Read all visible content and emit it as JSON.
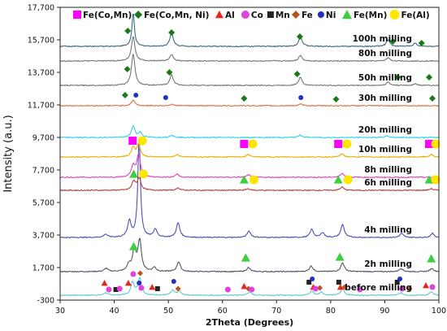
{
  "chart_data": {
    "type": "line",
    "xlabel": "2Theta (Degrees)",
    "ylabel": "Intensity (a.u.)",
    "xlim": [
      30,
      100
    ],
    "ylim": [
      -300,
      17700
    ],
    "x_ticks": [
      30,
      40,
      50,
      60,
      70,
      80,
      90,
      100
    ],
    "y_ticks": [
      "-300",
      "1,700",
      "3,700",
      "5,700",
      "7,700",
      "9,700",
      "11,700",
      "13,700",
      "15,700",
      "17,700"
    ],
    "y_tick_values": [
      -300,
      1700,
      3700,
      5700,
      7700,
      9700,
      11700,
      13700,
      15700,
      17700
    ],
    "grid": false,
    "legend_position": "top",
    "legend": [
      {
        "symbol": "square",
        "color": "#ff00ff",
        "label": "Fe(Co,Mn)"
      },
      {
        "symbol": "diamond",
        "color": "#1a7a1a",
        "label": "Fe(Co,Mn, Ni)"
      },
      {
        "symbol": "triangle",
        "color": "#e8261a",
        "label": "Al"
      },
      {
        "symbol": "circle",
        "color": "#e040e0",
        "label": "Co"
      },
      {
        "symbol": "square",
        "color": "#222222",
        "label": "Mn"
      },
      {
        "symbol": "diamond",
        "color": "#b5551d",
        "label": "Fe"
      },
      {
        "symbol": "circle",
        "color": "#2030c0",
        "label": "Ni"
      },
      {
        "symbol": "triangle",
        "color": "#3ecf3e",
        "label": "Fe(Mn)"
      },
      {
        "symbol": "circle",
        "color": "#ffe500",
        "label": "Fe(Al)"
      }
    ],
    "series": [
      {
        "name": "before milling",
        "color": "#5fc8c8",
        "baseline": 0,
        "peaks": [
          [
            38.4,
            150
          ],
          [
            43.4,
            800
          ],
          [
            44.7,
            1050
          ],
          [
            50.8,
            300
          ],
          [
            52.0,
            250
          ],
          [
            65.0,
            200
          ],
          [
            76.5,
            250
          ],
          [
            78.3,
            200
          ],
          [
            82.2,
            400
          ],
          [
            93.0,
            150
          ],
          [
            98.6,
            200
          ]
        ]
      },
      {
        "name": "2h milling",
        "color": "#555566",
        "baseline": 1450,
        "peaks": [
          [
            38.5,
            200
          ],
          [
            42.7,
            400
          ],
          [
            43.7,
            1300
          ],
          [
            44.7,
            1900
          ],
          [
            47.4,
            250
          ],
          [
            51.9,
            600
          ],
          [
            64.8,
            250
          ],
          [
            76.4,
            350
          ],
          [
            82.2,
            550
          ],
          [
            93.0,
            200
          ],
          [
            98.7,
            200
          ]
        ]
      },
      {
        "name": "4h milling",
        "color": "#5050b8",
        "baseline": 3550,
        "peaks": [
          [
            38.4,
            200
          ],
          [
            42.8,
            1000
          ],
          [
            44.6,
            6200
          ],
          [
            47.6,
            500
          ],
          [
            51.8,
            900
          ],
          [
            64.9,
            400
          ],
          [
            76.5,
            500
          ],
          [
            78.5,
            300
          ],
          [
            82.2,
            800
          ],
          [
            93.1,
            250
          ],
          [
            98.8,
            250
          ]
        ]
      },
      {
        "name": "6h milling",
        "color": "#b84040",
        "baseline": 6450,
        "peaks": [
          [
            43.6,
            550
          ],
          [
            44.6,
            750
          ],
          [
            51.8,
            150
          ],
          [
            64.7,
            100
          ],
          [
            82.1,
            200
          ],
          [
            98.6,
            100
          ]
        ]
      },
      {
        "name": "8h milling",
        "color": "#e040c8",
        "baseline": 7250,
        "peaks": [
          [
            43.5,
            700
          ],
          [
            44.5,
            1400
          ],
          [
            51.6,
            200
          ],
          [
            64.8,
            150
          ],
          [
            82.1,
            250
          ]
        ]
      },
      {
        "name": "10h milling",
        "color": "#e8b000",
        "baseline": 8500,
        "peaks": [
          [
            43.5,
            600
          ],
          [
            44.5,
            750
          ],
          [
            51.6,
            150
          ],
          [
            64.8,
            150
          ],
          [
            82.1,
            200
          ],
          [
            98.6,
            150
          ]
        ]
      },
      {
        "name": "20h milling",
        "color": "#30d0e8",
        "baseline": 9700,
        "peaks": [
          [
            43.5,
            700
          ],
          [
            44.8,
            300
          ],
          [
            50.6,
            150
          ],
          [
            74.4,
            150
          ],
          [
            90.4,
            100
          ]
        ]
      },
      {
        "name": "30h milling",
        "color": "#e07040",
        "baseline": 11650,
        "peaks": [
          [
            43.5,
            350
          ],
          [
            50.6,
            100
          ],
          [
            74.5,
            100
          ]
        ]
      },
      {
        "name": "50h milling",
        "color": "#777777",
        "baseline": 12900,
        "peaks": [
          [
            43.5,
            1950
          ],
          [
            50.6,
            650
          ],
          [
            74.4,
            500
          ],
          [
            90.6,
            200
          ],
          [
            95.6,
            100
          ]
        ]
      },
      {
        "name": "80h milling",
        "color": "#777777",
        "baseline": 14400,
        "peaks": [
          [
            43.5,
            1500
          ],
          [
            50.6,
            400
          ],
          [
            74.4,
            350
          ],
          [
            90.6,
            200
          ]
        ]
      },
      {
        "name": "100h milling",
        "color": "#3c6a80",
        "baseline": 15300,
        "peaks": [
          [
            43.5,
            2050
          ],
          [
            50.6,
            800
          ],
          [
            74.4,
            600
          ],
          [
            90.6,
            400
          ],
          [
            95.6,
            200
          ]
        ]
      }
    ]
  }
}
